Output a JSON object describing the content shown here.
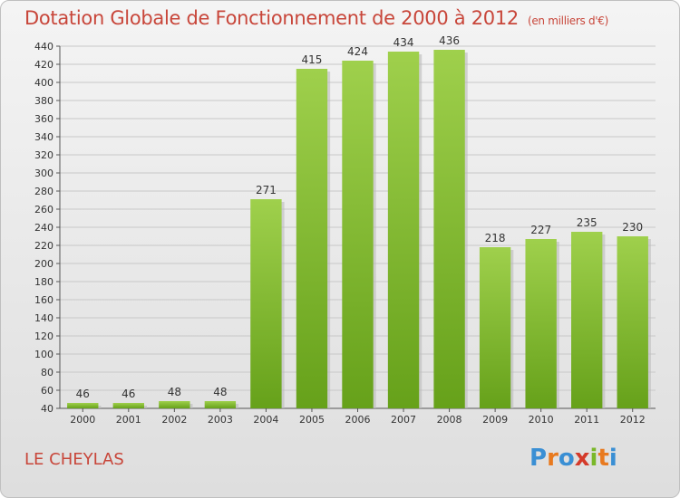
{
  "header": {
    "title": "Dotation Globale de Fonctionnement de 2000 à 2012",
    "unit_note": "(en milliers d'€)"
  },
  "footer": {
    "town": "LE CHEYLAS",
    "brand": "Proxiti"
  },
  "colors": {
    "bar_top": "#9fd04c",
    "bar_bottom": "#66a11a",
    "title": "#c8463a",
    "grid": "#c8c8c8",
    "brand_letters": [
      "#3a8fd4",
      "#e87a1f",
      "#3a8fd4",
      "#d43a2a",
      "#7ab82a",
      "#e87a1f",
      "#3a8fd4"
    ]
  },
  "chart_data": {
    "type": "bar",
    "categories": [
      "2000",
      "2001",
      "2002",
      "2003",
      "2004",
      "2005",
      "2006",
      "2007",
      "2008",
      "2009",
      "2010",
      "2011",
      "2012"
    ],
    "values": [
      46,
      46,
      48,
      48,
      271,
      415,
      424,
      434,
      436,
      218,
      227,
      235,
      230
    ],
    "ylim": [
      40,
      440
    ],
    "yticks": [
      40,
      60,
      80,
      100,
      120,
      140,
      160,
      180,
      200,
      220,
      240,
      260,
      280,
      300,
      320,
      340,
      360,
      380,
      400,
      420,
      440
    ],
    "grid": true,
    "data_labels": true
  }
}
